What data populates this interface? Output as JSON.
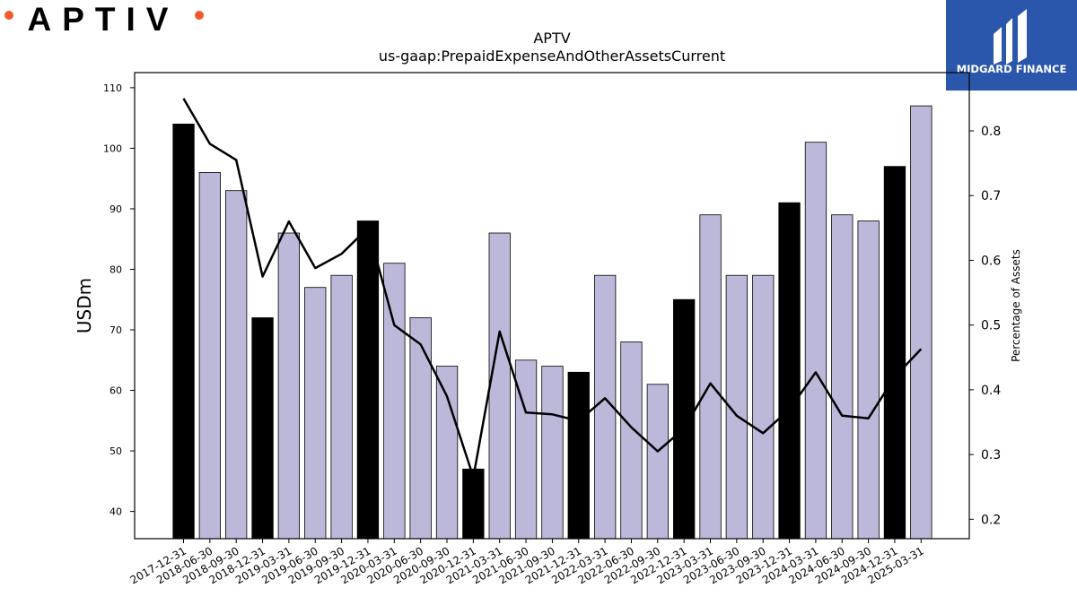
{
  "brand": {
    "left_logo_text": "APTIV",
    "right_logo_text": "MIDGARD FINANCE",
    "logo_dot_color": "#f25a2b",
    "brand_box_color": "#2a56ab"
  },
  "chart_data": {
    "type": "bar",
    "title": "APTV",
    "subtitle": "us-gaap:PrepaidExpenseAndOtherAssetsCurrent",
    "ylabel": "USDm",
    "y2label": "Percentage of Assets",
    "ylim": [
      35.5,
      112.5
    ],
    "y2lim": [
      0.17,
      0.89
    ],
    "yticks": [
      40,
      50,
      60,
      70,
      80,
      90,
      100,
      110
    ],
    "y2ticks": [
      0.2,
      0.3,
      0.4,
      0.5,
      0.6,
      0.7,
      0.8
    ],
    "grid": false,
    "categories": [
      "2017-12-31",
      "2018-06-30",
      "2018-09-30",
      "2018-12-31",
      "2019-03-31",
      "2019-06-30",
      "2019-09-30",
      "2019-12-31",
      "2020-03-31",
      "2020-06-30",
      "2020-09-30",
      "2020-12-31",
      "2021-03-31",
      "2021-06-30",
      "2021-09-30",
      "2021-12-31",
      "2022-03-31",
      "2022-06-30",
      "2022-09-30",
      "2022-12-31",
      "2023-03-31",
      "2023-06-30",
      "2023-09-30",
      "2023-12-31",
      "2024-03-31",
      "2024-06-30",
      "2024-09-30",
      "2024-12-31",
      "2025-03-31"
    ],
    "series": [
      {
        "type": "bar",
        "values": [
          104,
          96,
          93,
          72,
          86,
          77,
          79,
          88,
          81,
          72,
          64,
          47,
          86,
          65,
          64,
          63,
          79,
          68,
          61,
          75,
          89,
          79,
          79,
          91,
          101,
          89,
          88,
          97,
          107
        ],
        "fiscal_year_end": [
          true,
          false,
          false,
          true,
          false,
          false,
          false,
          true,
          false,
          false,
          false,
          true,
          false,
          false,
          false,
          true,
          false,
          false,
          false,
          true,
          false,
          false,
          false,
          true,
          false,
          false,
          false,
          true,
          false
        ],
        "colors": {
          "year_end": "#000000",
          "quarter": "#bcb8d9"
        }
      },
      {
        "type": "line",
        "axis": "right",
        "values": [
          0.85,
          0.78,
          0.755,
          0.575,
          0.66,
          0.588,
          0.61,
          0.65,
          0.5,
          0.47,
          0.39,
          0.265,
          0.49,
          0.365,
          0.362,
          0.352,
          0.387,
          0.342,
          0.305,
          0.34,
          0.41,
          0.36,
          0.333,
          0.37,
          0.427,
          0.36,
          0.356,
          0.42,
          0.463
        ],
        "color": "#000000"
      }
    ]
  }
}
